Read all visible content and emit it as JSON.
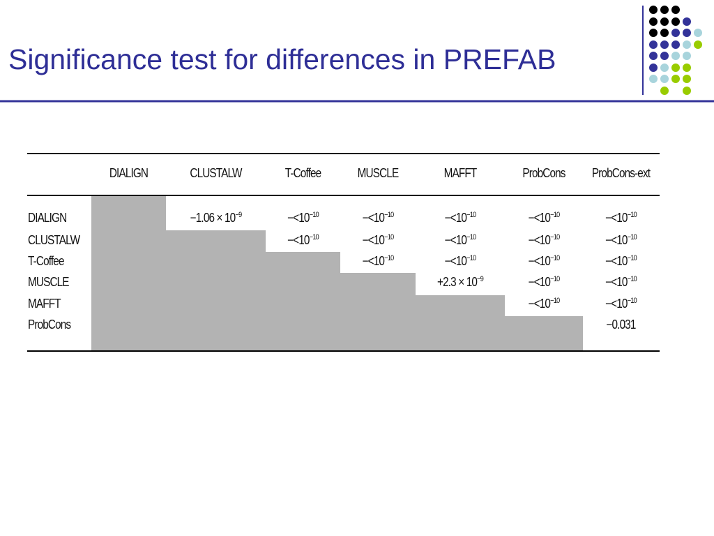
{
  "header": {
    "title": "Significance test for differences in PREFAB"
  },
  "table": {
    "columns": [
      "DIALIGN",
      "CLUSTALW",
      "T-Coffee",
      "MUSCLE",
      "MAFFT",
      "ProbCons",
      "ProbCons-ext"
    ],
    "rows": [
      {
        "label": "DIALIGN",
        "cells": [
          null,
          {
            "text": "−1.06 × 10",
            "sup": "−9"
          },
          {
            "text": "−<10",
            "sup": "−10"
          },
          {
            "text": "−<10",
            "sup": "−10"
          },
          {
            "text": "−<10",
            "sup": "−10"
          },
          {
            "text": "−<10",
            "sup": "−10"
          },
          {
            "text": "−<10",
            "sup": "−10"
          }
        ]
      },
      {
        "label": "CLUSTALW",
        "cells": [
          null,
          null,
          {
            "text": "−<10",
            "sup": "−10"
          },
          {
            "text": "−<10",
            "sup": "−10"
          },
          {
            "text": "−<10",
            "sup": "−10"
          },
          {
            "text": "−<10",
            "sup": "−10"
          },
          {
            "text": "−<10",
            "sup": "−10"
          }
        ]
      },
      {
        "label": "T-Coffee",
        "cells": [
          null,
          null,
          null,
          {
            "text": "−<10",
            "sup": "−10"
          },
          {
            "text": "−<10",
            "sup": "−10"
          },
          {
            "text": "−<10",
            "sup": "−10"
          },
          {
            "text": "−<10",
            "sup": "−10"
          }
        ]
      },
      {
        "label": "MUSCLE",
        "cells": [
          null,
          null,
          null,
          null,
          {
            "text": "+2.3 × 10",
            "sup": "−9"
          },
          {
            "text": "−<10",
            "sup": "−10"
          },
          {
            "text": "−<10",
            "sup": "−10"
          }
        ]
      },
      {
        "label": "MAFFT",
        "cells": [
          null,
          null,
          null,
          null,
          null,
          {
            "text": "−<10",
            "sup": "−10"
          },
          {
            "text": "−<10",
            "sup": "−10"
          }
        ]
      },
      {
        "label": "ProbCons",
        "cells": [
          null,
          null,
          null,
          null,
          null,
          null,
          {
            "text": "−0.031"
          }
        ]
      }
    ]
  }
}
